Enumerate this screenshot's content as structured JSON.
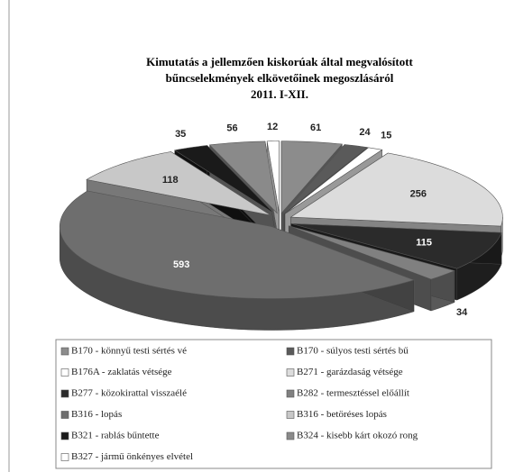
{
  "chart_data": {
    "type": "pie",
    "title": [
      "Kimutatás a jellemzően kiskorúak által megvalósított",
      "bűncselekmények elkövetőinek megoszlásáról",
      "2011. I-XII."
    ],
    "categories": [
      "B170 - könnyű testi sértés vé",
      "B170 - súlyos testi sértés bű",
      "B176A - zaklatás vétsége",
      "B271 - garázdaság vétsége",
      "B277 - közokirattal visszaélé",
      "B282 - termesztéssel előállít",
      "B316 - lopás",
      "B316 - betöréses lopás",
      "B321 - rablás bűntette",
      "B324 - kisebb kárt okozó rong",
      "B327 - jármű önkényes elvétel"
    ],
    "values": [
      61,
      24,
      15,
      256,
      115,
      34,
      593,
      118,
      35,
      56,
      12
    ],
    "colors": [
      "#8c8c8c",
      "#5a5a5a",
      "#ffffff",
      "#dcdcdc",
      "#2b2b2b",
      "#808080",
      "#6e6e6e",
      "#c8c8c8",
      "#1a1a1a",
      "#8a8a8a",
      "#ffffff"
    ],
    "legend": "bottom"
  }
}
